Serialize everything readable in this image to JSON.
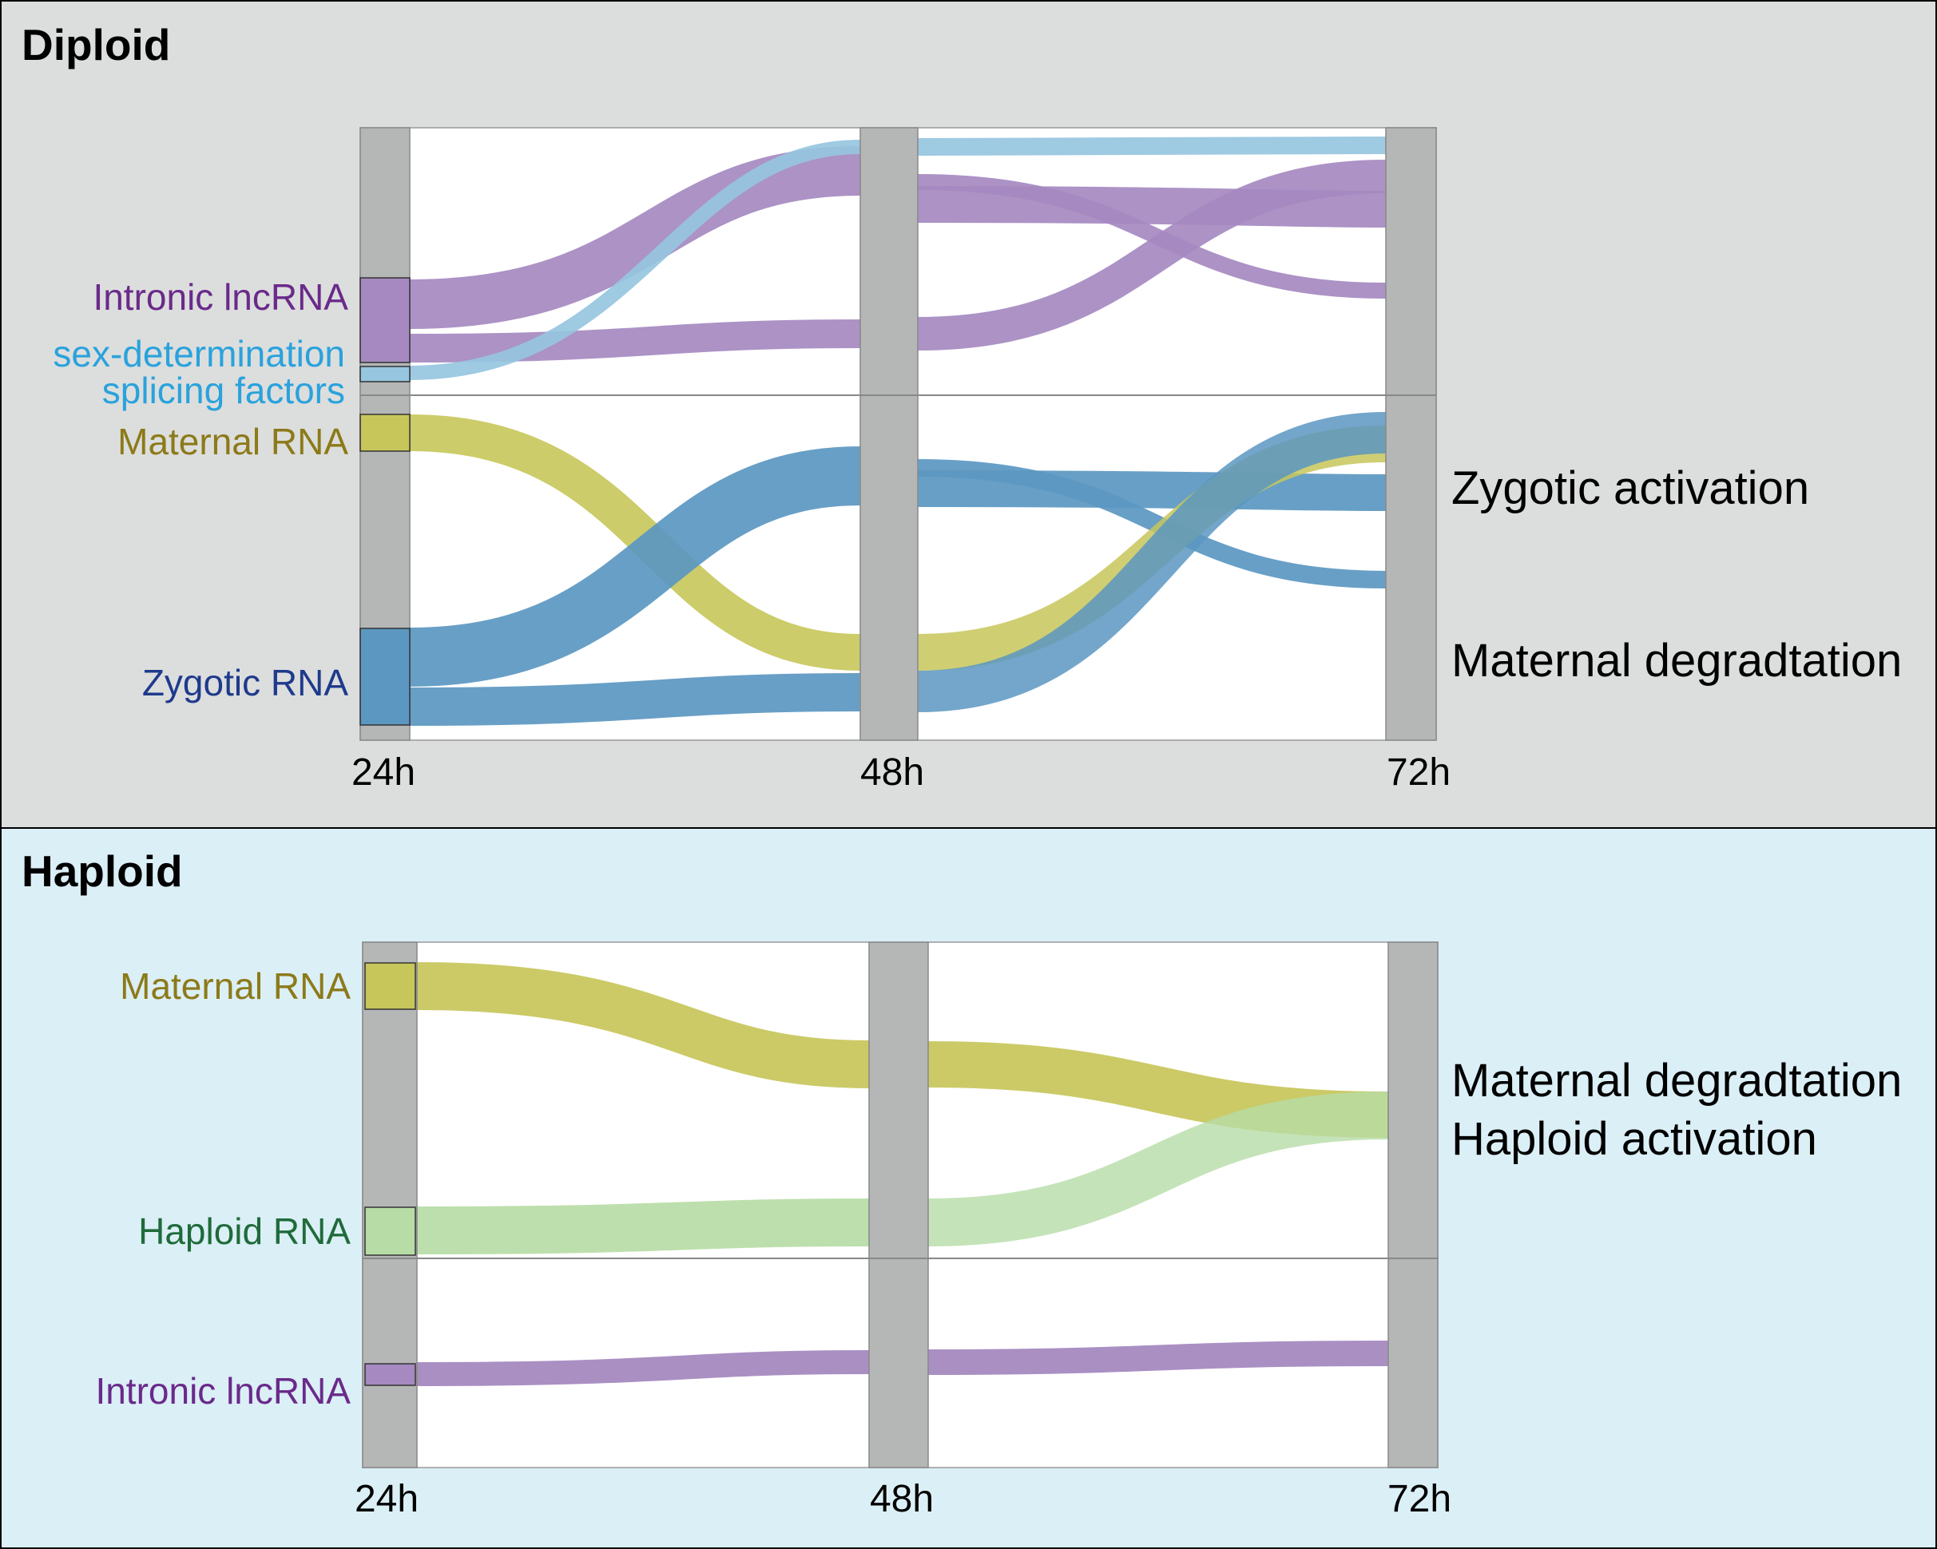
{
  "colors": {
    "diploid_bg": "#dcdedd",
    "haploid_bg": "#dbeff6",
    "node_gray": "#b5b6b6",
    "intronic": "#a589c0",
    "sex_determination": "#96c6e0",
    "maternal": "#c7c65a",
    "zygotic": "#5b97c1",
    "haploid": "#b7dca6",
    "label_intronic": "#6a2a8a",
    "label_sex": "#2aa2dc",
    "label_maternal": "#8c7a1a",
    "label_zygotic": "#1f3a8c",
    "label_haploid": "#1f6b3a"
  },
  "diploid": {
    "title": "Diploid",
    "labels": {
      "intronic": "Intronic lncRNA",
      "sex_line1": "sex-determination",
      "sex_line2": "splicing factors",
      "maternal": "Maternal RNA",
      "zygotic": "Zygotic RNA"
    },
    "ticks": [
      "24h",
      "48h",
      "72h"
    ],
    "notes": [
      "Zygotic activation",
      "Maternal degradtation"
    ]
  },
  "haploid": {
    "title": "Haploid",
    "labels": {
      "maternal": "Maternal RNA",
      "haploid": "Haploid RNA",
      "intronic": "Intronic lncRNA"
    },
    "ticks": [
      "24h",
      "48h",
      "72h"
    ],
    "notes": [
      "Maternal degradtation",
      "Haploid activation"
    ]
  }
}
